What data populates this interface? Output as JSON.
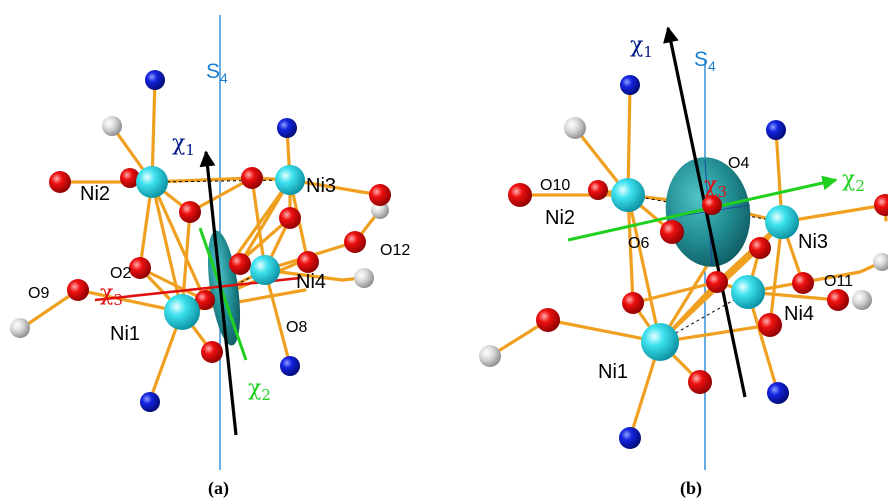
{
  "panels": [
    {
      "caption": "(a)",
      "atoms": {
        "ni1": "Ni1",
        "ni2": "Ni2",
        "ni3": "Ni3",
        "ni4": "Ni4",
        "o2": "O2",
        "o8": "O8",
        "o9": "O9",
        "o12": "O12"
      },
      "axes": {
        "s4": "S",
        "s4_sub": "4",
        "chi": "χ",
        "chi1_sub": "1",
        "chi2_sub": "2",
        "chi3_sub": "3"
      }
    },
    {
      "caption": "(b)",
      "atoms": {
        "ni1": "Ni1",
        "ni2": "Ni2",
        "ni3": "Ni3",
        "ni4": "Ni4",
        "o4": "O4",
        "o6": "O6",
        "o10": "O10",
        "o11": "O11"
      },
      "axes": {
        "s4": "S",
        "s4_sub": "4",
        "chi": "χ",
        "chi1_sub": "1",
        "chi2_sub": "2",
        "chi3_sub": "3"
      }
    }
  ],
  "colors": {
    "nickel": "#2ed3e0",
    "oxygen": "#e8000b",
    "nitrogen": "#0a1ad6",
    "hydrogen": "#cfcfcf",
    "bond": "#f0a020",
    "s4_axis": "#1a7fd0",
    "chi1": "#000000",
    "chi2": "#1fd01f",
    "chi3": "#e01010",
    "ellipsoid": "#1f8a90"
  }
}
